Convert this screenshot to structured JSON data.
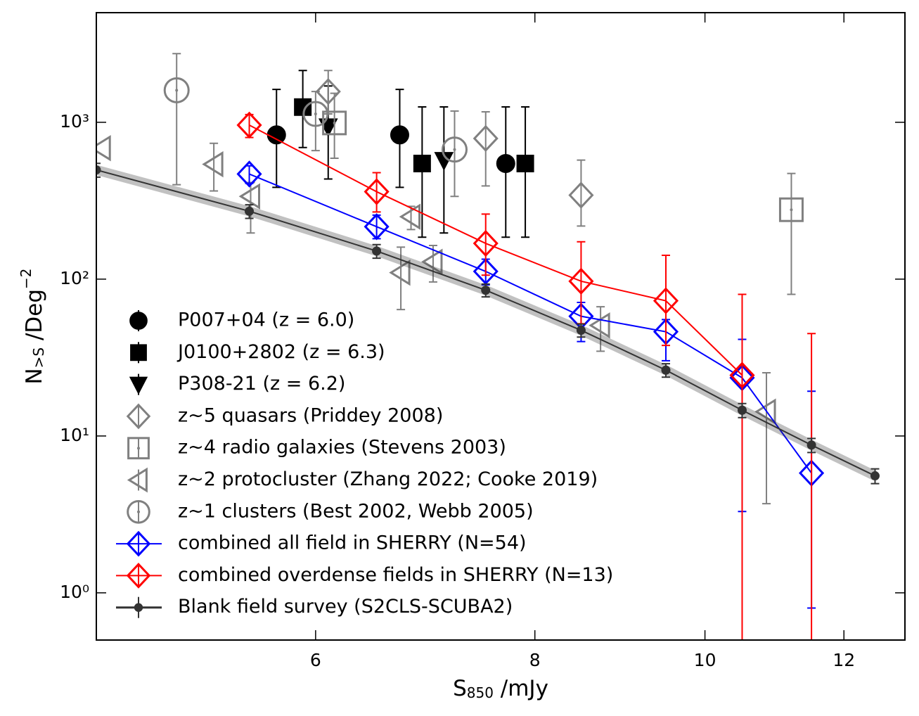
{
  "chart_data": {
    "type": "scatter",
    "xlabel": {
      "text": "S",
      "sub": "850",
      "rest": " /mJy"
    },
    "ylabel": {
      "text": "N",
      "sub": ">S",
      "rest": " /Deg",
      "sup": "−2"
    },
    "xlim": [
      4.5,
      13
    ],
    "ylim": [
      0.5,
      5000
    ],
    "xscale": "log",
    "yscale": "log",
    "xticks": [
      6,
      8,
      10,
      12
    ],
    "yticks": [
      {
        "value": 1,
        "label": "10⁰"
      },
      {
        "value": 10,
        "label": "10¹"
      },
      {
        "value": 100,
        "label": "10²"
      },
      {
        "value": 1000,
        "label": "10³"
      }
    ],
    "legend": "upper left",
    "series": [
      {
        "name": "P007+04 (z = 6.0)",
        "color": "#000000",
        "marker": "circle",
        "filled": true,
        "line": false,
        "x": [
          5.7,
          6.7,
          7.7
        ],
        "values": [
          831,
          831,
          546
        ],
        "err_low": [
          446,
          446,
          361
        ],
        "err_high": [
          790,
          790,
          708
        ]
      },
      {
        "name": "J0100+2802 (z = 6.3)",
        "color": "#000000",
        "marker": "square",
        "filled": true,
        "line": false,
        "x": [
          5.9,
          6.9,
          7.9
        ],
        "values": [
          1250,
          546,
          546
        ],
        "err_low": [
          560,
          361,
          361
        ],
        "err_high": [
          890,
          708,
          708
        ]
      },
      {
        "name": "P308-21 (z = 6.2)",
        "color": "#000000",
        "marker": "triangle-down",
        "filled": true,
        "line": false,
        "x": [
          6.1,
          7.1
        ],
        "values": [
          940,
          574
        ],
        "err_low": [
          505,
          377
        ],
        "err_high": [
          765,
          680
        ]
      },
      {
        "name": "z~5 quasars (Priddey 2008)",
        "color": "#808080",
        "marker": "diamond",
        "filled": false,
        "line": false,
        "x": [
          6.1,
          7.5,
          8.5
        ],
        "values": [
          1570,
          789,
          343
        ],
        "err_low": [
          440,
          396,
          125
        ],
        "err_high": [
          570,
          377,
          231
        ]
      },
      {
        "name": "z~4 radio galaxies (Stevens 2003)",
        "color": "#808080",
        "marker": "square-dot",
        "filled": false,
        "line": false,
        "x": [
          6.15,
          11.2
        ],
        "values": [
          990,
          277
        ],
        "err_low": [
          400,
          197
        ],
        "err_high": [
          540,
          195
        ]
      },
      {
        "name": "z~2 protocluster (Zhang 2022; Cooke 2019)",
        "color": "#808080",
        "marker": "triangle-left",
        "filled": false,
        "line": false,
        "x": [
          4.53,
          5.25,
          5.51,
          6.71,
          7.0,
          6.8,
          8.72,
          10.84
        ],
        "values": [
          684,
          540,
          337,
          110,
          129,
          250,
          50.7,
          14.3
        ],
        "err_low": [
          null,
          175,
          140,
          46,
          33,
          43,
          16,
          10.6
        ],
        "err_high": [
          null,
          195,
          76,
          50,
          35,
          41,
          16,
          11
        ]
      },
      {
        "name": "z~1 clusters (Best 2002, Webb 2005)",
        "color": "#808080",
        "marker": "circle-dot",
        "filled": false,
        "line": false,
        "x": [
          5.0,
          6.0,
          7.2
        ],
        "values": [
          1600,
          1130,
          670
        ],
        "err_low": [
          1200,
          470,
          333
        ],
        "err_high": [
          1140,
          440,
          510
        ]
      },
      {
        "name": "combined all field in SHERRY (N=54)",
        "color": "#0000ff",
        "marker": "diamond",
        "filled": false,
        "line": true,
        "x": [
          5.5,
          6.5,
          7.5,
          8.5,
          9.5,
          10.5,
          11.5
        ],
        "values": [
          468,
          216,
          112,
          58,
          46.2,
          23.5,
          5.8
        ],
        "err_low": [
          60,
          35,
          20,
          18,
          16,
          20.2,
          5
        ],
        "err_high": [
          60,
          40,
          22,
          13,
          9,
          17.8,
          13.5
        ]
      },
      {
        "name": "combined overdense fields in SHERRY (N=13)",
        "color": "#ff0000",
        "marker": "diamond",
        "filled": false,
        "line": true,
        "x": [
          5.5,
          6.5,
          7.5,
          8.5,
          9.5,
          10.5,
          11.5
        ],
        "values": [
          960,
          361,
          169,
          97,
          72.8,
          24.4,
          0
        ],
        "err_low": [
          160,
          93,
          63,
          45,
          35,
          24.4,
          0
        ],
        "err_high": [
          160,
          116,
          91,
          76,
          69,
          55.6,
          45
        ]
      },
      {
        "name": "Blank field survey (S2CLS-SCUBA2)",
        "color": "#333333",
        "marker": "dot",
        "filled": true,
        "line": true,
        "band": true,
        "x": [
          4.5,
          5.5,
          6.5,
          7.5,
          8.5,
          9.5,
          10.5,
          11.5,
          12.5
        ],
        "values": [
          497,
          271,
          151,
          85,
          47.2,
          26.3,
          14.6,
          8.75,
          5.57
        ],
        "err_low": [
          50,
          27,
          15,
          8,
          4.5,
          2.6,
          1.5,
          0.9,
          0.6
        ],
        "err_high": [
          50,
          27,
          15,
          8,
          4.5,
          2.6,
          1.5,
          0.9,
          0.6
        ]
      }
    ]
  }
}
